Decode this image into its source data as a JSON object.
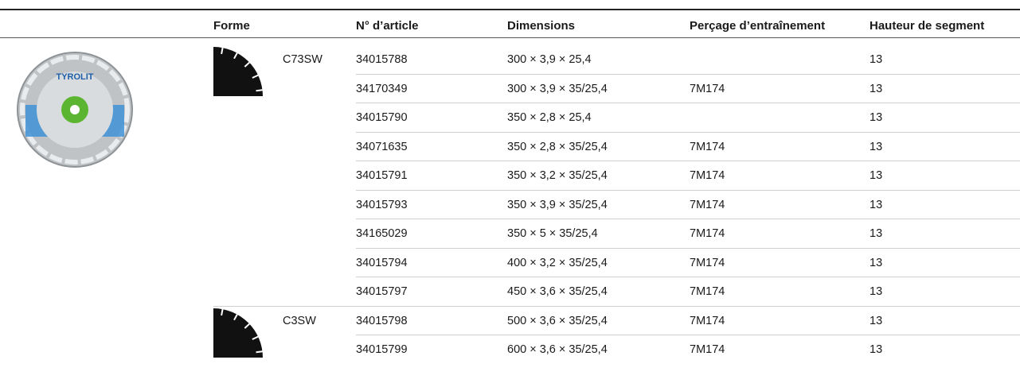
{
  "header": [
    "Forme",
    "N° d’article",
    "Dimensions",
    "Perçage d’entraînement",
    "Hauteur de segment"
  ],
  "image": {
    "brand": "TYROLIT"
  },
  "groups": [
    {
      "forme": "C73SW",
      "rows": [
        {
          "article": "34015788",
          "dimensions": "300 × 3,9 × 25,4",
          "hauteur": "13"
        },
        {
          "article": "34170349",
          "dimensions": "300 × 3,9 × 35/25,4",
          "percage": "7M174",
          "hauteur": "13"
        },
        {
          "article": "34015790",
          "dimensions": "350 × 2,8 × 25,4",
          "hauteur": "13"
        },
        {
          "article": "34071635",
          "dimensions": "350 × 2,8 × 35/25,4",
          "percage": "7M174",
          "hauteur": "13"
        },
        {
          "article": "34015791",
          "dimensions": "350 × 3,2 × 35/25,4",
          "percage": "7M174",
          "hauteur": "13"
        },
        {
          "article": "34015793",
          "dimensions": "350 × 3,9 × 35/25,4",
          "percage": "7M174",
          "hauteur": "13"
        },
        {
          "article": "34165029",
          "dimensions": "350 × 5 × 35/25,4",
          "percage": "7M174",
          "hauteur": "13"
        },
        {
          "article": "34015794",
          "dimensions": "400 × 3,2 × 35/25,4",
          "percage": "7M174",
          "hauteur": "13"
        },
        {
          "article": "34015797",
          "dimensions": "450 × 3,6 × 35/25,4",
          "percage": "7M174",
          "hauteur": "13"
        }
      ]
    },
    {
      "forme": "C3SW",
      "rows": [
        {
          "article": "34015798",
          "dimensions": "500 × 3,6 × 35/25,4",
          "percage": "7M174",
          "hauteur": "13"
        },
        {
          "article": "34015799",
          "dimensions": "600 × 3,6 × 35/25,4",
          "percage": "7M174",
          "hauteur": "13"
        }
      ]
    }
  ]
}
